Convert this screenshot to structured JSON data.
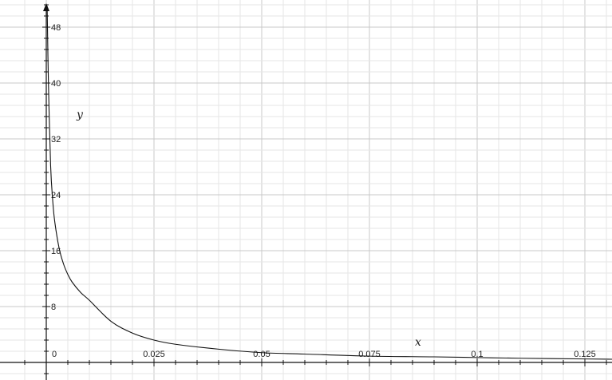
{
  "chart_data": {
    "type": "line",
    "title": "",
    "xlabel": "x",
    "ylabel": "y",
    "xlim": [
      0,
      0.1325
    ],
    "ylim": [
      -2,
      51
    ],
    "grid": true,
    "x_ticks": [
      {
        "value": 0,
        "label": "0"
      },
      {
        "value": 0.025,
        "label": "0.025"
      },
      {
        "value": 0.05,
        "label": "0.05"
      },
      {
        "value": 0.075,
        "label": "0.075"
      },
      {
        "value": 0.1,
        "label": "0.1"
      },
      {
        "value": 0.125,
        "label": "0.125"
      }
    ],
    "y_ticks": [
      {
        "value": 8,
        "label": "8"
      },
      {
        "value": 16,
        "label": "16"
      },
      {
        "value": 24,
        "label": "24"
      },
      {
        "value": 32,
        "label": "32"
      },
      {
        "value": 40,
        "label": "40"
      },
      {
        "value": 48,
        "label": "48"
      }
    ],
    "series": [
      {
        "x": [
          0.0002,
          0.0005,
          0.001,
          0.0015,
          0.002,
          0.003,
          0.004,
          0.005,
          0.006,
          0.008,
          0.01,
          0.015,
          0.02,
          0.025,
          0.03,
          0.04,
          0.05,
          0.06,
          0.075,
          0.09,
          0.1,
          0.11,
          0.125,
          0.1325
        ],
        "y": [
          51,
          40,
          28.3,
          23.1,
          20,
          16.3,
          14.1,
          12.6,
          11.5,
          10,
          8.9,
          5.9,
          4.2,
          3.2,
          2.6,
          1.9,
          1.4,
          1.2,
          0.9,
          0.8,
          0.7,
          0.6,
          0.5,
          0.45
        ]
      }
    ]
  }
}
